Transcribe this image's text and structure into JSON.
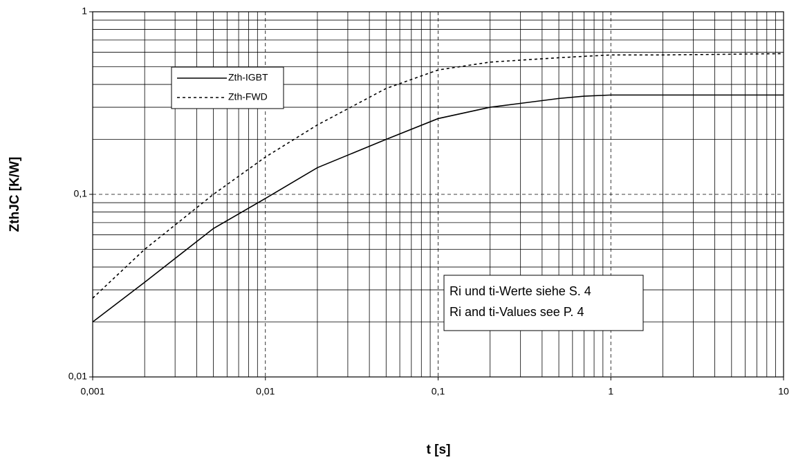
{
  "chart_data": {
    "type": "line",
    "x_label": "t [s]",
    "y_label": "ZthJC [K/W]",
    "x": [
      0.001,
      0.002,
      0.005,
      0.01,
      0.02,
      0.05,
      0.1,
      0.2,
      0.5,
      0.7,
      1,
      2,
      10
    ],
    "series": [
      {
        "name": "Zth-IGBT",
        "color": "#000000",
        "line_style": "solid",
        "values": [
          0.02,
          0.033,
          0.065,
          0.095,
          0.14,
          0.2,
          0.26,
          0.3,
          0.335,
          0.345,
          0.35,
          0.35,
          0.35
        ]
      },
      {
        "name": "Zth-FWD",
        "color": "#000000",
        "line_style": "dotted",
        "values": [
          0.027,
          0.05,
          0.1,
          0.16,
          0.24,
          0.38,
          0.48,
          0.53,
          0.56,
          0.57,
          0.58,
          0.58,
          0.59
        ]
      }
    ],
    "xlim": [
      0.001,
      10
    ],
    "ylim": [
      0.01,
      1
    ],
    "xscale": "log",
    "yscale": "log",
    "xticks": [
      {
        "value": 0.001,
        "label": "0,001"
      },
      {
        "value": 0.01,
        "label": "0,01"
      },
      {
        "value": 0.1,
        "label": "0,1"
      },
      1,
      10
    ],
    "yticks": [
      {
        "value": 0.01,
        "label": "0,01"
      },
      {
        "value": 0.1,
        "label": "0,1"
      },
      1
    ],
    "grid": true,
    "legend": "upper left",
    "annotations": [
      "Ri und ti-Werte siehe S. 4",
      "Ri and ti-Values see  P. 4"
    ]
  }
}
